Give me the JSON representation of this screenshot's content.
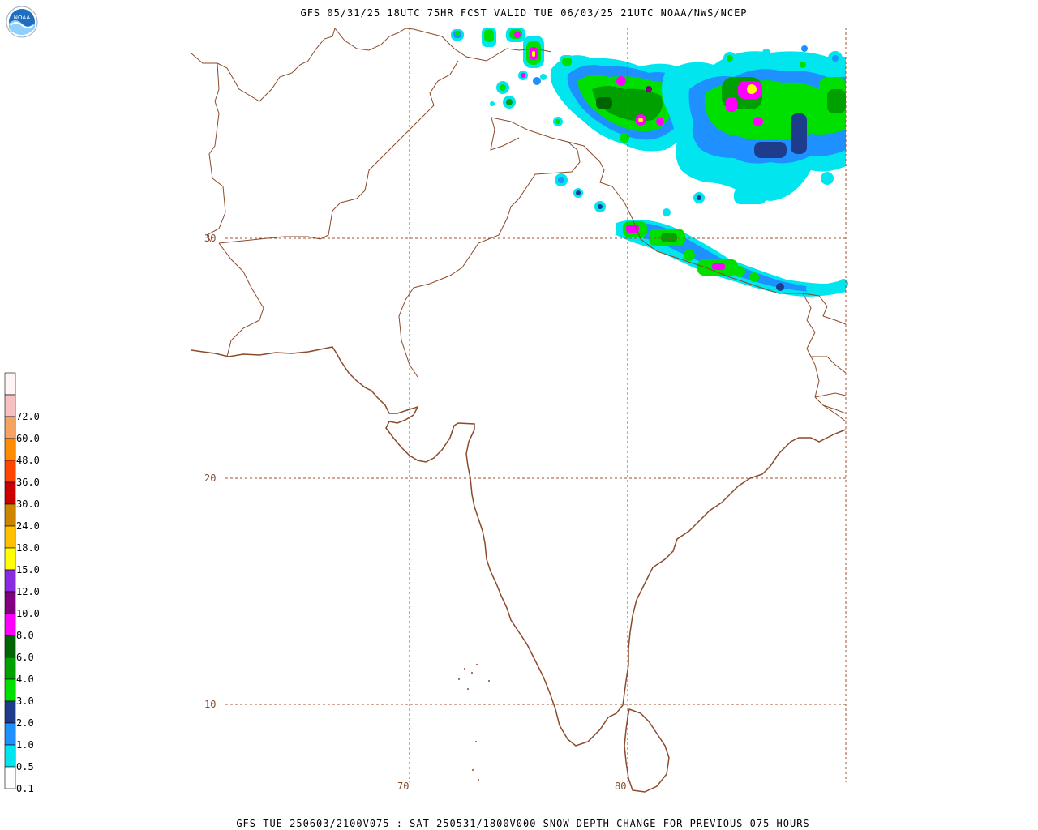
{
  "header": {
    "title": "GFS 05/31/25 18UTC 75HR FCST VALID TUE 06/03/25 21UTC NOAA/NWS/NCEP",
    "footer": "GFS TUE 250603/2100V075 : SAT 250531/1800V000 SNOW DEPTH CHANGE FOR PREVIOUS 075 HOURS"
  },
  "logo": {
    "text": "NOAA",
    "icon": "noaa-logo-icon"
  },
  "map": {
    "latitude_labels": [
      "30",
      "20",
      "10"
    ],
    "longitude_labels": [
      "70",
      "80"
    ],
    "coast_color": "#8b4a2b",
    "border_color": "#8b4a2b",
    "grid_color": "#a0522d"
  },
  "legend": {
    "levels": [
      {
        "label": "",
        "color": "#fff5f5"
      },
      {
        "label": "72.0",
        "color": "#f7c1c1"
      },
      {
        "label": "60.0",
        "color": "#f4a460"
      },
      {
        "label": "48.0",
        "color": "#ff8c00"
      },
      {
        "label": "36.0",
        "color": "#ff4500"
      },
      {
        "label": "30.0",
        "color": "#cc0000"
      },
      {
        "label": "24.0",
        "color": "#cd8500"
      },
      {
        "label": "18.0",
        "color": "#ffc000"
      },
      {
        "label": "15.0",
        "color": "#ffff00"
      },
      {
        "label": "12.0",
        "color": "#8a2be2"
      },
      {
        "label": "10.0",
        "color": "#800080"
      },
      {
        "label": "8.0",
        "color": "#ff00ff"
      },
      {
        "label": "6.0",
        "color": "#006400"
      },
      {
        "label": "4.0",
        "color": "#00a000"
      },
      {
        "label": "3.0",
        "color": "#00e000"
      },
      {
        "label": "2.0",
        "color": "#1e3c8c"
      },
      {
        "label": "1.0",
        "color": "#1e90ff"
      },
      {
        "label": "0.5",
        "color": "#00e5ee"
      },
      {
        "label": "0.1",
        "color": "#ffffff"
      }
    ]
  }
}
